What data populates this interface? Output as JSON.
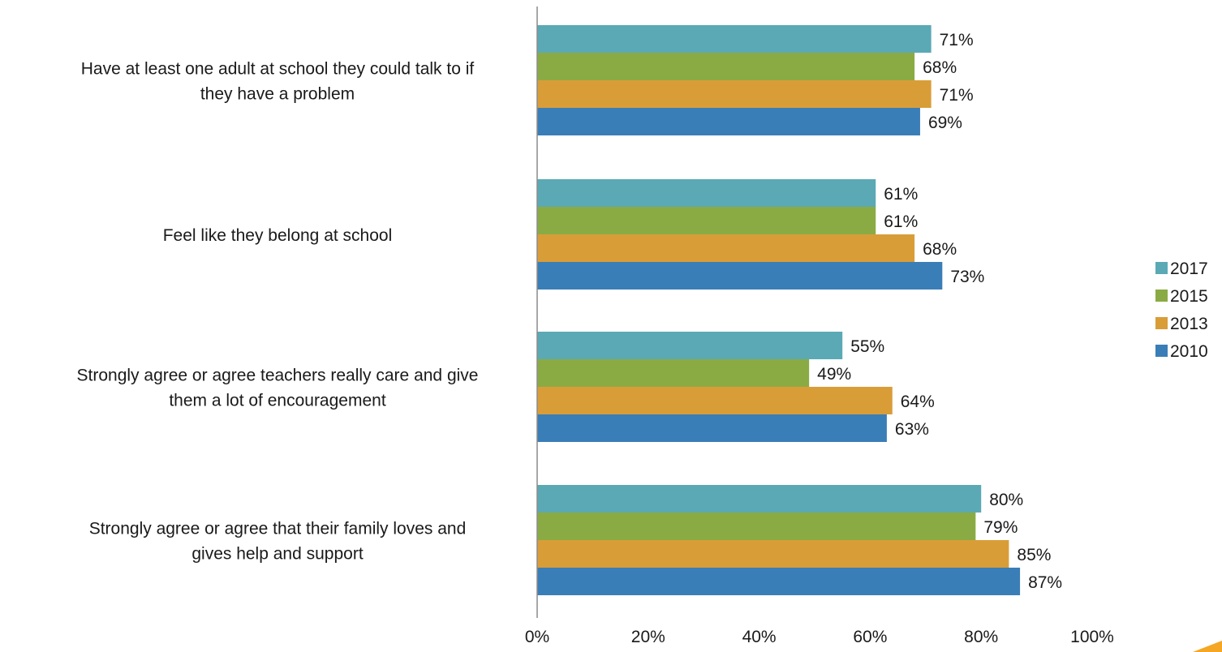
{
  "chart_data": {
    "type": "bar",
    "orientation": "horizontal",
    "categories": [
      [
        "Have at least one adult at school they could talk to if",
        "they have a problem"
      ],
      [
        "Feel like they belong at school"
      ],
      [
        "Strongly agree or agree teachers really care and give",
        "them a lot of encouragement"
      ],
      [
        "Strongly agree or agree that their family loves and",
        "gives help and support"
      ]
    ],
    "series": [
      {
        "name": "2017",
        "color": "#5aa9b5",
        "values": [
          71,
          61,
          55,
          80
        ],
        "labels": [
          "71%",
          "61%",
          "55%",
          "80%"
        ]
      },
      {
        "name": "2015",
        "color": "#8aab44",
        "values": [
          68,
          61,
          49,
          79
        ],
        "labels": [
          "68%",
          "61%",
          "49%",
          "79%"
        ]
      },
      {
        "name": "2013",
        "color": "#d99d38",
        "values": [
          71,
          68,
          64,
          85
        ],
        "labels": [
          "71%",
          "68%",
          "64%",
          "85%"
        ]
      },
      {
        "name": "2010",
        "color": "#3a7eb7",
        "values": [
          69,
          73,
          63,
          87
        ],
        "labels": [
          "69%",
          "73%",
          "63%",
          "87%"
        ]
      }
    ],
    "x_ticks": [
      "0%",
      "20%",
      "40%",
      "60%",
      "80%",
      "100%"
    ],
    "xlim": [
      0,
      100
    ],
    "grid": false,
    "legend_position": "right",
    "legend_order": [
      "2017",
      "2015",
      "2013",
      "2010"
    ],
    "title": "",
    "xlabel": "",
    "ylabel": ""
  },
  "accent": {
    "corner_color": "#f5a623"
  }
}
